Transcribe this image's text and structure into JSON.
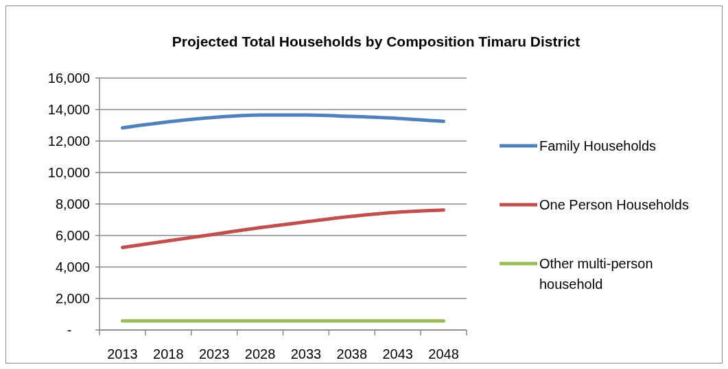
{
  "chart_data": {
    "type": "line",
    "title": "Projected Total Households by Composition Timaru District",
    "categories": [
      "2013",
      "2018",
      "2023",
      "2028",
      "2033",
      "2038",
      "2043",
      "2048"
    ],
    "series": [
      {
        "name": "Family Households",
        "color": "#4f81bd",
        "values": [
          12840,
          13220,
          13500,
          13650,
          13650,
          13560,
          13440,
          13250
        ]
      },
      {
        "name": "One Person Households",
        "color": "#c0504d",
        "values": [
          5240,
          5660,
          6080,
          6500,
          6870,
          7220,
          7480,
          7620
        ]
      },
      {
        "name": "Other multi-person household",
        "color": "#9bbb59",
        "values": [
          580,
          580,
          580,
          580,
          580,
          580,
          580,
          580
        ]
      }
    ],
    "ylim": [
      0,
      16000
    ],
    "yticks": [
      {
        "value": 0,
        "label": "-"
      },
      {
        "value": 2000,
        "label": "2,000"
      },
      {
        "value": 4000,
        "label": "4,000"
      },
      {
        "value": 6000,
        "label": "6,000"
      },
      {
        "value": 8000,
        "label": "8,000"
      },
      {
        "value": 10000,
        "label": "10,000"
      },
      {
        "value": 12000,
        "label": "12,000"
      },
      {
        "value": 14000,
        "label": "14,000"
      },
      {
        "value": 16000,
        "label": "16,000"
      }
    ],
    "grid": "y",
    "legend": "right",
    "marker": "none",
    "line_style": "solid"
  }
}
